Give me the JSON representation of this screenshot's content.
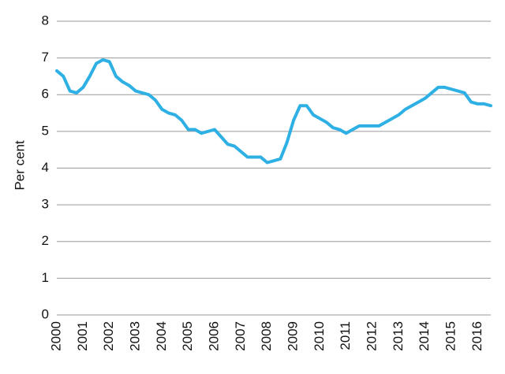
{
  "chart_data": {
    "type": "line",
    "y_label": "Per cent",
    "x": [
      2000,
      2000.25,
      2000.5,
      2000.75,
      2001,
      2001.25,
      2001.5,
      2001.75,
      2002,
      2002.25,
      2002.5,
      2002.75,
      2003,
      2003.25,
      2003.5,
      2003.75,
      2004,
      2004.25,
      2004.5,
      2004.75,
      2005,
      2005.25,
      2005.5,
      2005.75,
      2006,
      2006.25,
      2006.5,
      2006.75,
      2007,
      2007.25,
      2007.5,
      2007.75,
      2008,
      2008.25,
      2008.5,
      2008.75,
      2009,
      2009.25,
      2009.5,
      2009.75,
      2010,
      2010.25,
      2010.5,
      2010.75,
      2011,
      2011.25,
      2011.5,
      2011.75,
      2012,
      2012.25,
      2012.5,
      2012.75,
      2013,
      2013.25,
      2013.5,
      2013.75,
      2014,
      2014.25,
      2014.5,
      2014.75,
      2015,
      2015.25,
      2015.5,
      2015.75,
      2016,
      2016.25,
      2016.5
    ],
    "values": [
      6.65,
      6.5,
      6.1,
      6.05,
      6.2,
      6.5,
      6.85,
      6.95,
      6.9,
      6.5,
      6.35,
      6.25,
      6.1,
      6.05,
      6.0,
      5.85,
      5.6,
      5.5,
      5.45,
      5.3,
      5.05,
      5.05,
      4.95,
      5.0,
      5.05,
      4.85,
      4.65,
      4.6,
      4.45,
      4.3,
      4.3,
      4.3,
      4.15,
      4.2,
      4.25,
      4.7,
      5.3,
      5.7,
      5.7,
      5.45,
      5.35,
      5.25,
      5.1,
      5.05,
      4.95,
      5.05,
      5.15,
      5.15,
      5.15,
      5.15,
      5.25,
      5.35,
      5.45,
      5.6,
      5.7,
      5.8,
      5.9,
      6.05,
      6.2,
      6.2,
      6.15,
      6.1,
      6.05,
      5.8,
      5.75,
      5.75,
      5.7
    ],
    "color": "#2eb0e4",
    "xlim": [
      2000,
      2016.5
    ],
    "xticks": [
      2000,
      2001,
      2002,
      2003,
      2004,
      2005,
      2006,
      2007,
      2008,
      2009,
      2010,
      2011,
      2012,
      2013,
      2014,
      2015,
      2016
    ],
    "ylim": [
      0,
      8
    ],
    "yticks": [
      0,
      1,
      2,
      3,
      4,
      5,
      6,
      7,
      8
    ],
    "grid": true
  }
}
